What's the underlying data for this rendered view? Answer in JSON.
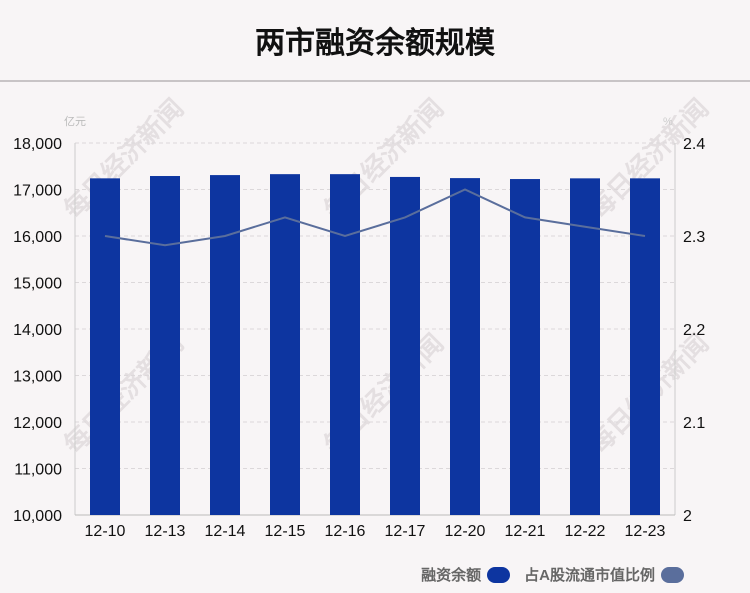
{
  "title": "两市融资余额规模",
  "watermark": "每日经济新闻",
  "chart_data": {
    "type": "bar+line",
    "categories": [
      "12-10",
      "12-13",
      "12-14",
      "12-15",
      "12-16",
      "12-17",
      "12-20",
      "12-21",
      "12-22",
      "12-23"
    ],
    "left_unit": "亿元",
    "right_unit": "%",
    "left_ylim": [
      10000,
      18000
    ],
    "left_ticks": [
      "10,000",
      "11,000",
      "12,000",
      "13,000",
      "14,000",
      "15,000",
      "16,000",
      "17,000",
      "18,000"
    ],
    "right_ylim": [
      2,
      2.4
    ],
    "right_ticks": [
      "2",
      "2.1",
      "2.2",
      "2.3",
      "2.4"
    ],
    "grid": true,
    "legend_position": "bottom-right",
    "series": [
      {
        "name": "融资余额",
        "type": "bar",
        "axis": "left",
        "color": "#0d35a0",
        "values": [
          17240,
          17290,
          17310,
          17330,
          17330,
          17270,
          17245,
          17225,
          17240,
          17240
        ]
      },
      {
        "name": "占A股流通市值比例",
        "type": "line",
        "axis": "right",
        "color": "#5a6e9c",
        "values": [
          2.3,
          2.29,
          2.3,
          2.32,
          2.3,
          2.32,
          2.35,
          2.32,
          2.31,
          2.3
        ]
      }
    ]
  }
}
